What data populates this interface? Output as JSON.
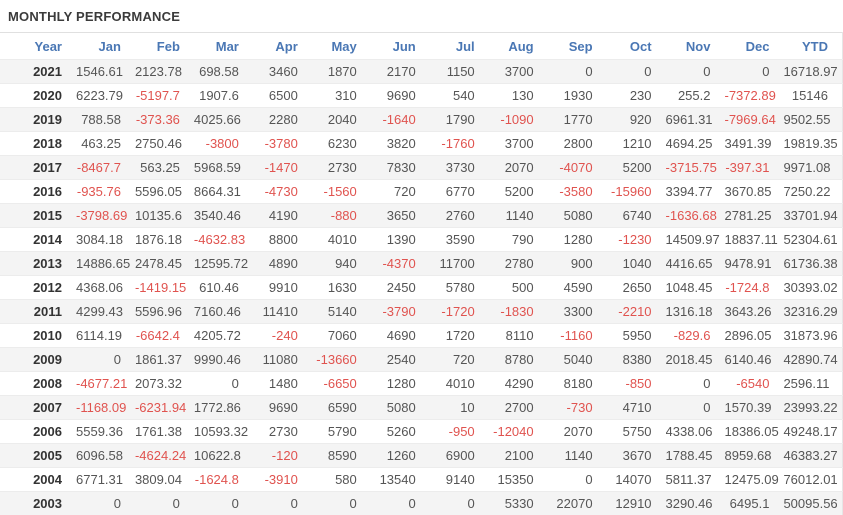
{
  "header": {
    "title": "MONTHLY PERFORMANCE"
  },
  "colors": {
    "header-text": "#4a77b4",
    "negative": "#e0534f",
    "value-text": "#555555",
    "year-text": "#333333",
    "stripe": "#f4f4f4"
  },
  "chart_data": {
    "type": "table",
    "title": "MONTHLY PERFORMANCE",
    "columns": [
      "Year",
      "Jan",
      "Feb",
      "Mar",
      "Apr",
      "May",
      "Jun",
      "Jul",
      "Aug",
      "Sep",
      "Oct",
      "Nov",
      "Dec",
      "YTD"
    ],
    "rows": [
      [
        "2021",
        "1546.61",
        "2123.78",
        "698.58",
        "3460",
        "1870",
        "2170",
        "1150",
        "3700",
        "0",
        "0",
        "0",
        "0",
        "16718.97"
      ],
      [
        "2020",
        "6223.79",
        "-5197.7",
        "1907.6",
        "6500",
        "310",
        "9690",
        "540",
        "130",
        "1930",
        "230",
        "255.2",
        "-7372.89",
        "15146"
      ],
      [
        "2019",
        "788.58",
        "-373.36",
        "4025.66",
        "2280",
        "2040",
        "-1640",
        "1790",
        "-1090",
        "1770",
        "920",
        "6961.31",
        "-7969.64",
        "9502.55"
      ],
      [
        "2018",
        "463.25",
        "2750.46",
        "-3800",
        "-3780",
        "6230",
        "3820",
        "-1760",
        "3700",
        "2800",
        "1210",
        "4694.25",
        "3491.39",
        "19819.35"
      ],
      [
        "2017",
        "-8467.7",
        "563.25",
        "5968.59",
        "-1470",
        "2730",
        "7830",
        "3730",
        "2070",
        "-4070",
        "5200",
        "-3715.75",
        "-397.31",
        "9971.08"
      ],
      [
        "2016",
        "-935.76",
        "5596.05",
        "8664.31",
        "-4730",
        "-1560",
        "720",
        "6770",
        "5200",
        "-3580",
        "-15960",
        "3394.77",
        "3670.85",
        "7250.22"
      ],
      [
        "2015",
        "-3798.69",
        "10135.6",
        "3540.46",
        "4190",
        "-880",
        "3650",
        "2760",
        "1140",
        "5080",
        "6740",
        "-1636.68",
        "2781.25",
        "33701.94"
      ],
      [
        "2014",
        "3084.18",
        "1876.18",
        "-4632.83",
        "8800",
        "4010",
        "1390",
        "3590",
        "790",
        "1280",
        "-1230",
        "14509.97",
        "18837.11",
        "52304.61"
      ],
      [
        "2013",
        "14886.65",
        "2478.45",
        "12595.72",
        "4890",
        "940",
        "-4370",
        "11700",
        "2780",
        "900",
        "1040",
        "4416.65",
        "9478.91",
        "61736.38"
      ],
      [
        "2012",
        "4368.06",
        "-1419.15",
        "610.46",
        "9910",
        "1630",
        "2450",
        "5780",
        "500",
        "4590",
        "2650",
        "1048.45",
        "-1724.8",
        "30393.02"
      ],
      [
        "2011",
        "4299.43",
        "5596.96",
        "7160.46",
        "11410",
        "5140",
        "-3790",
        "-1720",
        "-1830",
        "3300",
        "-2210",
        "1316.18",
        "3643.26",
        "32316.29"
      ],
      [
        "2010",
        "6114.19",
        "-6642.4",
        "4205.72",
        "-240",
        "7060",
        "4690",
        "1720",
        "8110",
        "-1160",
        "5950",
        "-829.6",
        "2896.05",
        "31873.96"
      ],
      [
        "2009",
        "0",
        "1861.37",
        "9990.46",
        "11080",
        "-13660",
        "2540",
        "720",
        "8780",
        "5040",
        "8380",
        "2018.45",
        "6140.46",
        "42890.74"
      ],
      [
        "2008",
        "-4677.21",
        "2073.32",
        "0",
        "1480",
        "-6650",
        "1280",
        "4010",
        "4290",
        "8180",
        "-850",
        "0",
        "-6540",
        "2596.11"
      ],
      [
        "2007",
        "-1168.09",
        "-6231.94",
        "1772.86",
        "9690",
        "6590",
        "5080",
        "10",
        "2700",
        "-730",
        "4710",
        "0",
        "1570.39",
        "23993.22"
      ],
      [
        "2006",
        "5559.36",
        "1761.38",
        "10593.32",
        "2730",
        "5790",
        "5260",
        "-950",
        "-12040",
        "2070",
        "5750",
        "4338.06",
        "18386.05",
        "49248.17"
      ],
      [
        "2005",
        "6096.58",
        "-4624.24",
        "10622.8",
        "-120",
        "8590",
        "1260",
        "6900",
        "2100",
        "1140",
        "3670",
        "1788.45",
        "8959.68",
        "46383.27"
      ],
      [
        "2004",
        "6771.31",
        "3809.04",
        "-1624.8",
        "-3910",
        "580",
        "13540",
        "9140",
        "15350",
        "0",
        "14070",
        "5811.37",
        "12475.09",
        "76012.01"
      ],
      [
        "2003",
        "0",
        "0",
        "0",
        "0",
        "0",
        "0",
        "0",
        "5330",
        "22070",
        "12910",
        "3290.46",
        "6495.1",
        "50095.56"
      ]
    ]
  }
}
